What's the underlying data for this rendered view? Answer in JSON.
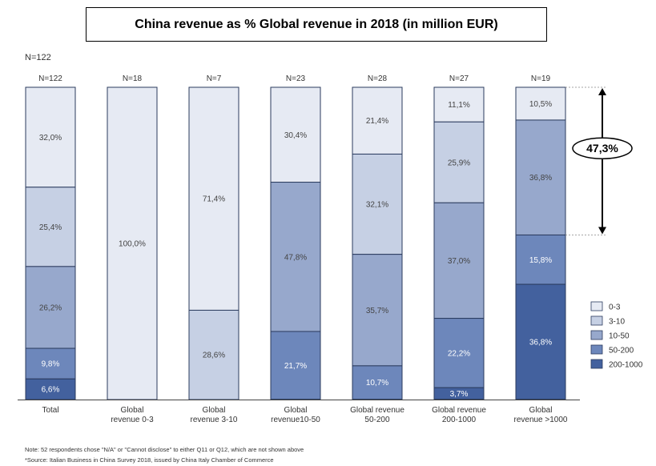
{
  "chart_data": {
    "type": "bar",
    "stacked": true,
    "percent": true,
    "title": "China revenue as % Global revenue in 2018 (in million EUR)",
    "overall_n": "N=122",
    "categories": [
      "Total",
      "Global revenue 0-3",
      "Global revenue 3-10",
      "Global revenue10-50",
      "Global revenue 50-200",
      "Global revenue 200-1000",
      "Global revenue >1000"
    ],
    "category_lines": [
      [
        "Total"
      ],
      [
        "Global",
        "revenue 0-3"
      ],
      [
        "Global",
        "revenue 3-10"
      ],
      [
        "Global",
        "revenue10-50"
      ],
      [
        "Global revenue",
        "50-200"
      ],
      [
        "Global revenue",
        "200-1000"
      ],
      [
        "Global",
        "revenue >1000"
      ]
    ],
    "n_labels": [
      "N=122",
      "N=18",
      "N=7",
      "N=23",
      "N=28",
      "N=27",
      "N=19"
    ],
    "series": [
      {
        "name": "0-3",
        "color": "#e6eaf3",
        "values": [
          32.0,
          100.0,
          71.4,
          30.4,
          21.4,
          11.1,
          10.5
        ],
        "labels": [
          "32,0%",
          "100,0%",
          "71,4%",
          "30,4%",
          "21,4%",
          "11,1%",
          "10,5%"
        ]
      },
      {
        "name": "3-10",
        "color": "#c6d0e4",
        "values": [
          25.4,
          0,
          28.6,
          0,
          32.1,
          25.9,
          0
        ],
        "labels": [
          "25,4%",
          "",
          "28,6%",
          "",
          "32,1%",
          "25,9%",
          ""
        ]
      },
      {
        "name": "10-50",
        "color": "#97a8cc",
        "values": [
          26.2,
          0,
          0,
          47.8,
          35.7,
          37.0,
          36.8
        ],
        "labels": [
          "26,2%",
          "",
          "",
          "47,8%",
          "35,7%",
          "37,0%",
          "36,8%"
        ]
      },
      {
        "name": "50-200",
        "color": "#6d87bb",
        "values": [
          9.8,
          0,
          0,
          21.7,
          10.7,
          22.2,
          15.8
        ],
        "labels": [
          "9,8%",
          "",
          "",
          "21,7%",
          "10,7%",
          "22,2%",
          "15,8%"
        ]
      },
      {
        "name": "200-1000",
        "color": "#43619e",
        "values": [
          6.6,
          0,
          0,
          0,
          0,
          3.7,
          36.8
        ],
        "labels": [
          "6,6%",
          "",
          "",
          "",
          "",
          "3,7%",
          "36,8%"
        ]
      }
    ],
    "annotation": {
      "label": "47,3%",
      "category_index": 6
    },
    "ylim": [
      0,
      100
    ],
    "legend": "right",
    "grid": false
  },
  "notes": [
    "Note: 52 respondents chose \"N/A\" or \"Cannot disclose\" to either Q11 or Q12, which are not shown above",
    "*Source: Italian Business in China Survey 2018, issued by China Italy Chamber of Commerce"
  ]
}
